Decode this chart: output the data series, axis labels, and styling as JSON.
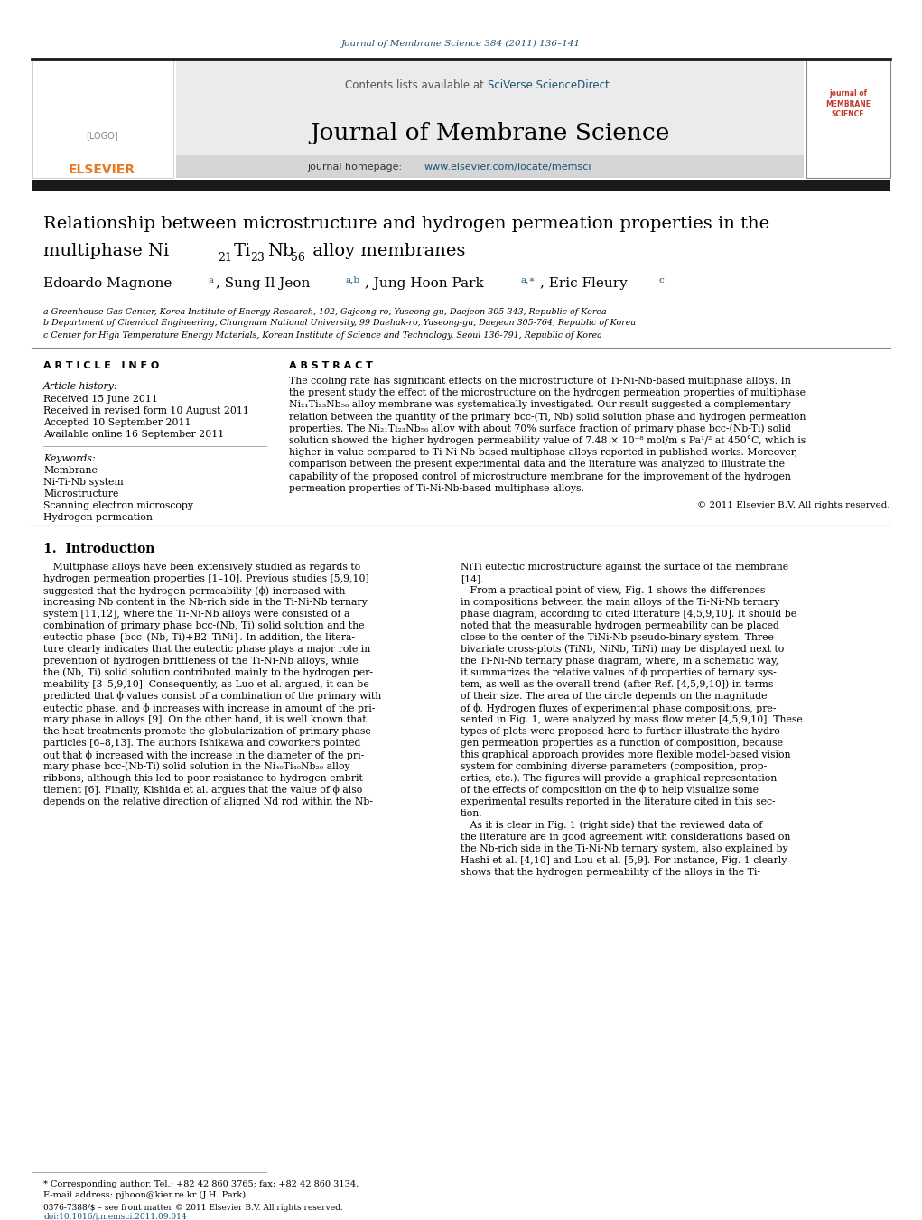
{
  "page_width": 10.21,
  "page_height": 13.51,
  "background_color": "#ffffff",
  "journal_ref_color": "#1a5276",
  "journal_ref": "Journal of Membrane Science 384 (2011) 136–141",
  "header_bg": "#e8e8e8",
  "header_text": "Contents lists available at SciVerse ScienceDirect",
  "journal_name": "Journal of Membrane Science",
  "journal_homepage": "journal homepage: www.elsevier.com/locate/memsci",
  "title_line1": "Relationship between microstructure and hydrogen permeation properties in the",
  "title_line2_pre": "multiphase Ni",
  "title_line2_d": " alloy membranes",
  "affil_a": "a Greenhouse Gas Center, Korea Institute of Energy Research, 102, Gajeong-ro, Yuseong-gu, Daejeon 305-343, Republic of Korea",
  "affil_b": "b Department of Chemical Engineering, Chungnam National University, 99 Daehak-ro, Yuseong-gu, Daejeon 305-764, Republic of Korea",
  "affil_c": "c Center for High Temperature Energy Materials, Korean Institute of Science and Technology, Seoul 136-791, Republic of Korea",
  "article_info_header": "A R T I C L E   I N F O",
  "abstract_header": "A B S T R A C T",
  "article_history_label": "Article history:",
  "received": "Received 15 June 2011",
  "revised": "Received in revised form 10 August 2011",
  "accepted": "Accepted 10 September 2011",
  "available": "Available online 16 September 2011",
  "keywords_label": "Keywords:",
  "keyword1": "Membrane",
  "keyword2": "Ni-Ti-Nb system",
  "keyword3": "Microstructure",
  "keyword4": "Scanning electron microscopy",
  "keyword5": "Hydrogen permeation",
  "copyright": "© 2011 Elsevier B.V. All rights reserved.",
  "section1_title": "1.  Introduction",
  "footnote1": "* Corresponding author. Tel.: +82 42 860 3765; fax: +82 42 860 3134.",
  "footnote2": "E-mail address: pjhoon@kier.re.kr (J.H. Park).",
  "issn_line": "0376-7388/$ – see front matter © 2011 Elsevier B.V. All rights reserved.",
  "doi_line": "doi:10.1016/j.memsci.2011.09.014",
  "link_color": "#1a5276",
  "elsevier_orange": "#e87722",
  "dark_bar_color": "#1a1a1a",
  "separator_color": "#888888"
}
